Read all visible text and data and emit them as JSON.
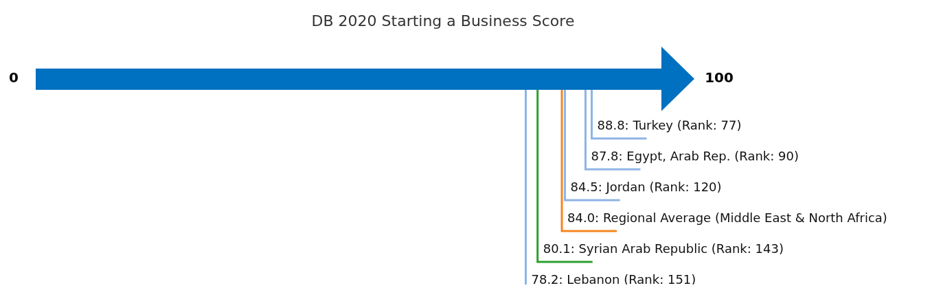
{
  "chart_data": {
    "type": "other",
    "title": "DB 2020 Starting a Business Score",
    "annotations": [
      "0",
      "100"
    ],
    "categories": [
      "Turkey (Rank: 77)",
      "Egypt, Arab Rep. (Rank: 90)",
      "Jordan (Rank: 120)",
      "Regional Average (Middle East & North Africa)",
      "Syrian Arab Republic (Rank: 143)",
      "Lebanon (Rank: 151)"
    ],
    "values": [
      88.8,
      87.8,
      84.5,
      84.0,
      80.1,
      78.2
    ],
    "value_labels": [
      "88.8:",
      "87.8:",
      "84.5:",
      "84.0:",
      "80.1:",
      "78.2:"
    ],
    "colors": [
      "#8db4e6",
      "#8db4e6",
      "#8db4e6",
      "#f5861f",
      "#2ca02c",
      "#8db4e6"
    ]
  }
}
